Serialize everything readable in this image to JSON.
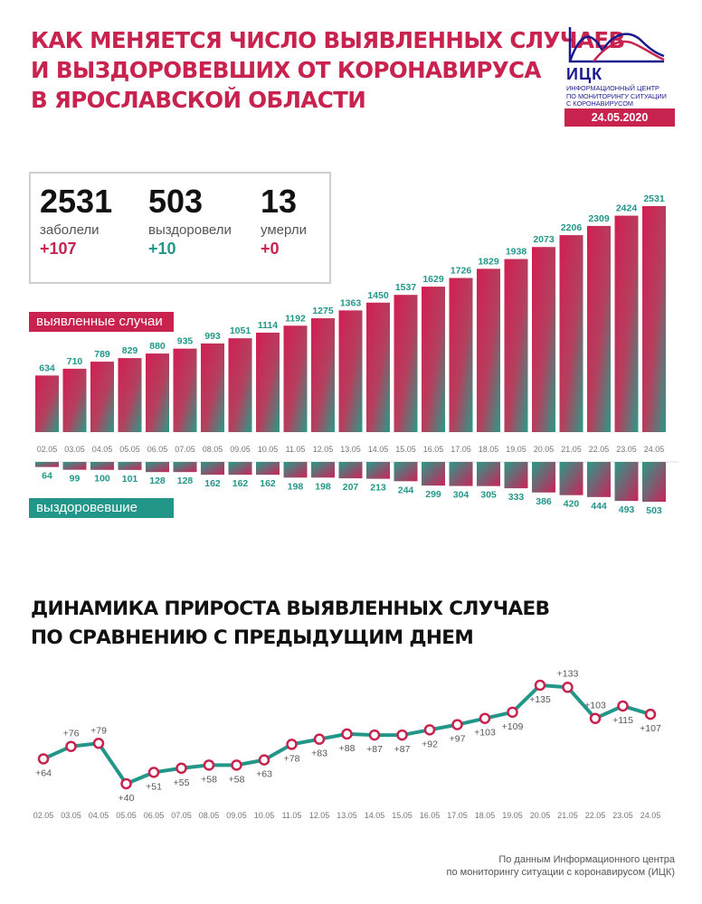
{
  "header": {
    "title_lines": [
      "КАК МЕНЯЕТСЯ ЧИСЛО ВЫЯВЛЕННЫХ СЛУЧАЕВ",
      "И ВЫЗДОРОВЕВШИХ ОТ КОРОНАВИРУСА",
      "В ЯРОСЛАВСКОЙ ОБЛАСТИ"
    ]
  },
  "logo": {
    "abbr": "ИЦК",
    "desc_lines": [
      "ИНФОРМАЦИОННЫЙ ЦЕНТР",
      "ПО МОНИТОРИНГУ СИТУАЦИИ",
      "С КОРОНАВИРУСОМ"
    ],
    "date": "24.05.2020"
  },
  "summary": {
    "cases": {
      "value": "2531",
      "label": "заболели",
      "delta": "+107"
    },
    "recovered": {
      "value": "503",
      "label": "выздоровели",
      "delta": "+10"
    },
    "deaths": {
      "value": "13",
      "label": "умерли",
      "delta": "+0"
    }
  },
  "labels": {
    "cases_pill": "выявленные случаи",
    "recovered_pill": "выздоровевшие"
  },
  "subtitle_lines": [
    "ДИНАМИКА ПРИРОСТА ВЫЯВЛЕННЫХ СЛУЧАЕВ",
    "ПО СРАВНЕНИЮ С ПРЕДЫДУЩИМ ДНЕМ"
  ],
  "footnote_lines": [
    "По данным Информационного центра",
    "по мониторингу ситуации с коронавирусом (ИЦК)"
  ],
  "colors": {
    "accent": "#c7234e",
    "teal": "#23968a",
    "navy": "#1a1a8c"
  },
  "chart_data": [
    {
      "type": "bar",
      "categories": [
        "02.05",
        "03.05",
        "04.05",
        "05.05",
        "06.05",
        "07.05",
        "08.05",
        "09.05",
        "10.05",
        "11.05",
        "12.05",
        "13.05",
        "14.05",
        "15.05",
        "16.05",
        "17.05",
        "18.05",
        "19.05",
        "20.05",
        "21.05",
        "22.05",
        "23.05",
        "24.05"
      ],
      "series": [
        {
          "name": "выявленные случаи",
          "values": [
            634,
            710,
            789,
            829,
            880,
            935,
            993,
            1051,
            1114,
            1192,
            1275,
            1363,
            1450,
            1537,
            1629,
            1726,
            1829,
            1938,
            2073,
            2206,
            2309,
            2424,
            2531
          ]
        },
        {
          "name": "выздоровевшие",
          "values": [
            64,
            99,
            100,
            101,
            128,
            128,
            162,
            162,
            162,
            198,
            198,
            207,
            213,
            244,
            299,
            304,
            305,
            333,
            386,
            420,
            444,
            493,
            503
          ]
        }
      ]
    },
    {
      "type": "line",
      "categories": [
        "02.05",
        "03.05",
        "04.05",
        "05.05",
        "06.05",
        "07.05",
        "08.05",
        "09.05",
        "10.05",
        "11.05",
        "12.05",
        "13.05",
        "14.05",
        "15.05",
        "16.05",
        "17.05",
        "18.05",
        "19.05",
        "20.05",
        "21.05",
        "22.05",
        "23.05",
        "24.05"
      ],
      "values": [
        64,
        76,
        79,
        40,
        51,
        55,
        58,
        58,
        63,
        78,
        83,
        88,
        87,
        87,
        92,
        97,
        103,
        109,
        135,
        133,
        103,
        115,
        107
      ],
      "labels": [
        "+64",
        "+76",
        "+79",
        "+40",
        "+51",
        "+55",
        "+58",
        "+58",
        "+63",
        "+78",
        "+83",
        "+88",
        "+87",
        "+87",
        "+92",
        "+97",
        "+103",
        "+109",
        "+135",
        "+133",
        "+103",
        "+115",
        "+107"
      ]
    }
  ]
}
